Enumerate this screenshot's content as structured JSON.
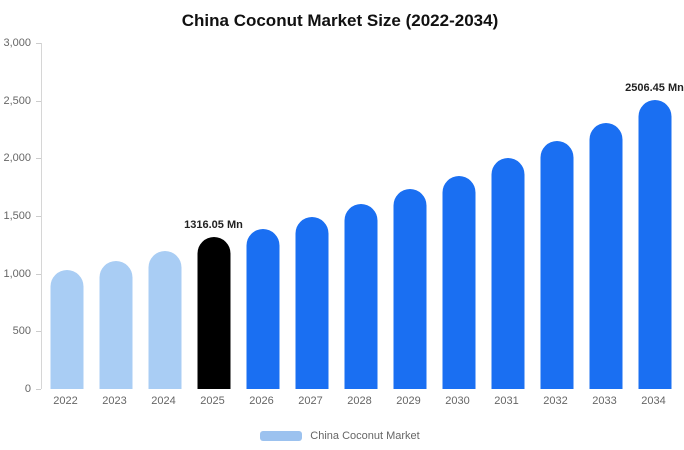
{
  "chart_data": {
    "type": "bar",
    "title": "China Coconut Market Size (2022-2034)",
    "categories": [
      "2022",
      "2023",
      "2024",
      "2025",
      "2026",
      "2027",
      "2028",
      "2029",
      "2030",
      "2031",
      "2032",
      "2033",
      "2034"
    ],
    "values": [
      1030,
      1110,
      1200,
      1316.05,
      1390,
      1490,
      1600,
      1730,
      1850,
      2000,
      2150,
      2310,
      2506.45
    ],
    "bar_colors": [
      "#a9cdf4",
      "#a9cdf4",
      "#a9cdf4",
      "#000000",
      "#1a6ff2",
      "#1a6ff2",
      "#1a6ff2",
      "#1a6ff2",
      "#1a6ff2",
      "#1a6ff2",
      "#1a6ff2",
      "#1a6ff2",
      "#1a6ff2"
    ],
    "annotations": [
      {
        "category": "2025",
        "text": "1316.05 Mn"
      },
      {
        "category": "2034",
        "text": "2506.45 Mn"
      }
    ],
    "xlabel": "",
    "ylabel": "",
    "ylim": [
      0,
      3000
    ],
    "y_ticks": [
      "3,000",
      "2,500",
      "2,000",
      "1,500",
      "1,000",
      "500",
      "0"
    ],
    "grid": false,
    "legend": {
      "position": "bottom",
      "items": [
        {
          "label": "China Coconut Market",
          "swatch_color": "#9cc2ef"
        }
      ]
    }
  }
}
